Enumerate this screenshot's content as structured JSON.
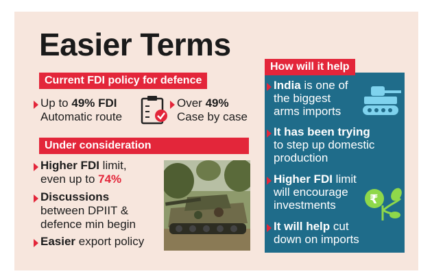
{
  "title": "Easier Terms",
  "current": {
    "header": "Current FDI policy for defence",
    "left": {
      "pre": "Up to ",
      "bold": "49% FDI",
      "line2": "Automatic route"
    },
    "right": {
      "pre": "Over ",
      "bold": "49%",
      "line2": "Case by case"
    }
  },
  "consideration": {
    "header": "Under consideration",
    "items": [
      {
        "bold": "Higher FDI",
        "rest": " limit,",
        "line2_pre": "even up to ",
        "line2_red": "74%"
      },
      {
        "bold": "Discussions",
        "line2": "between DPIIT &",
        "line3": "defence min begin"
      },
      {
        "bold": "Easier",
        "rest": " export policy"
      }
    ]
  },
  "help": {
    "header": "How will it help",
    "items": [
      {
        "bold": "India",
        "rest": " is one of",
        "line2": "the biggest",
        "line3": "arms imports"
      },
      {
        "bold": "It has been trying",
        "line2": "to step up domestic",
        "line3": "production"
      },
      {
        "bold": "Higher FDI",
        "rest": " limit",
        "line2": "will encourage",
        "line3": "investments"
      },
      {
        "bold": "It will help",
        "rest": " cut",
        "line2": "down on imports"
      }
    ]
  },
  "icons": [
    "clipboard-check-icon",
    "tank-icon",
    "rupee-plant-icon"
  ],
  "colors": {
    "accent": "#e3263a",
    "panel": "#1f6c8a",
    "background": "#f7e6dd"
  }
}
